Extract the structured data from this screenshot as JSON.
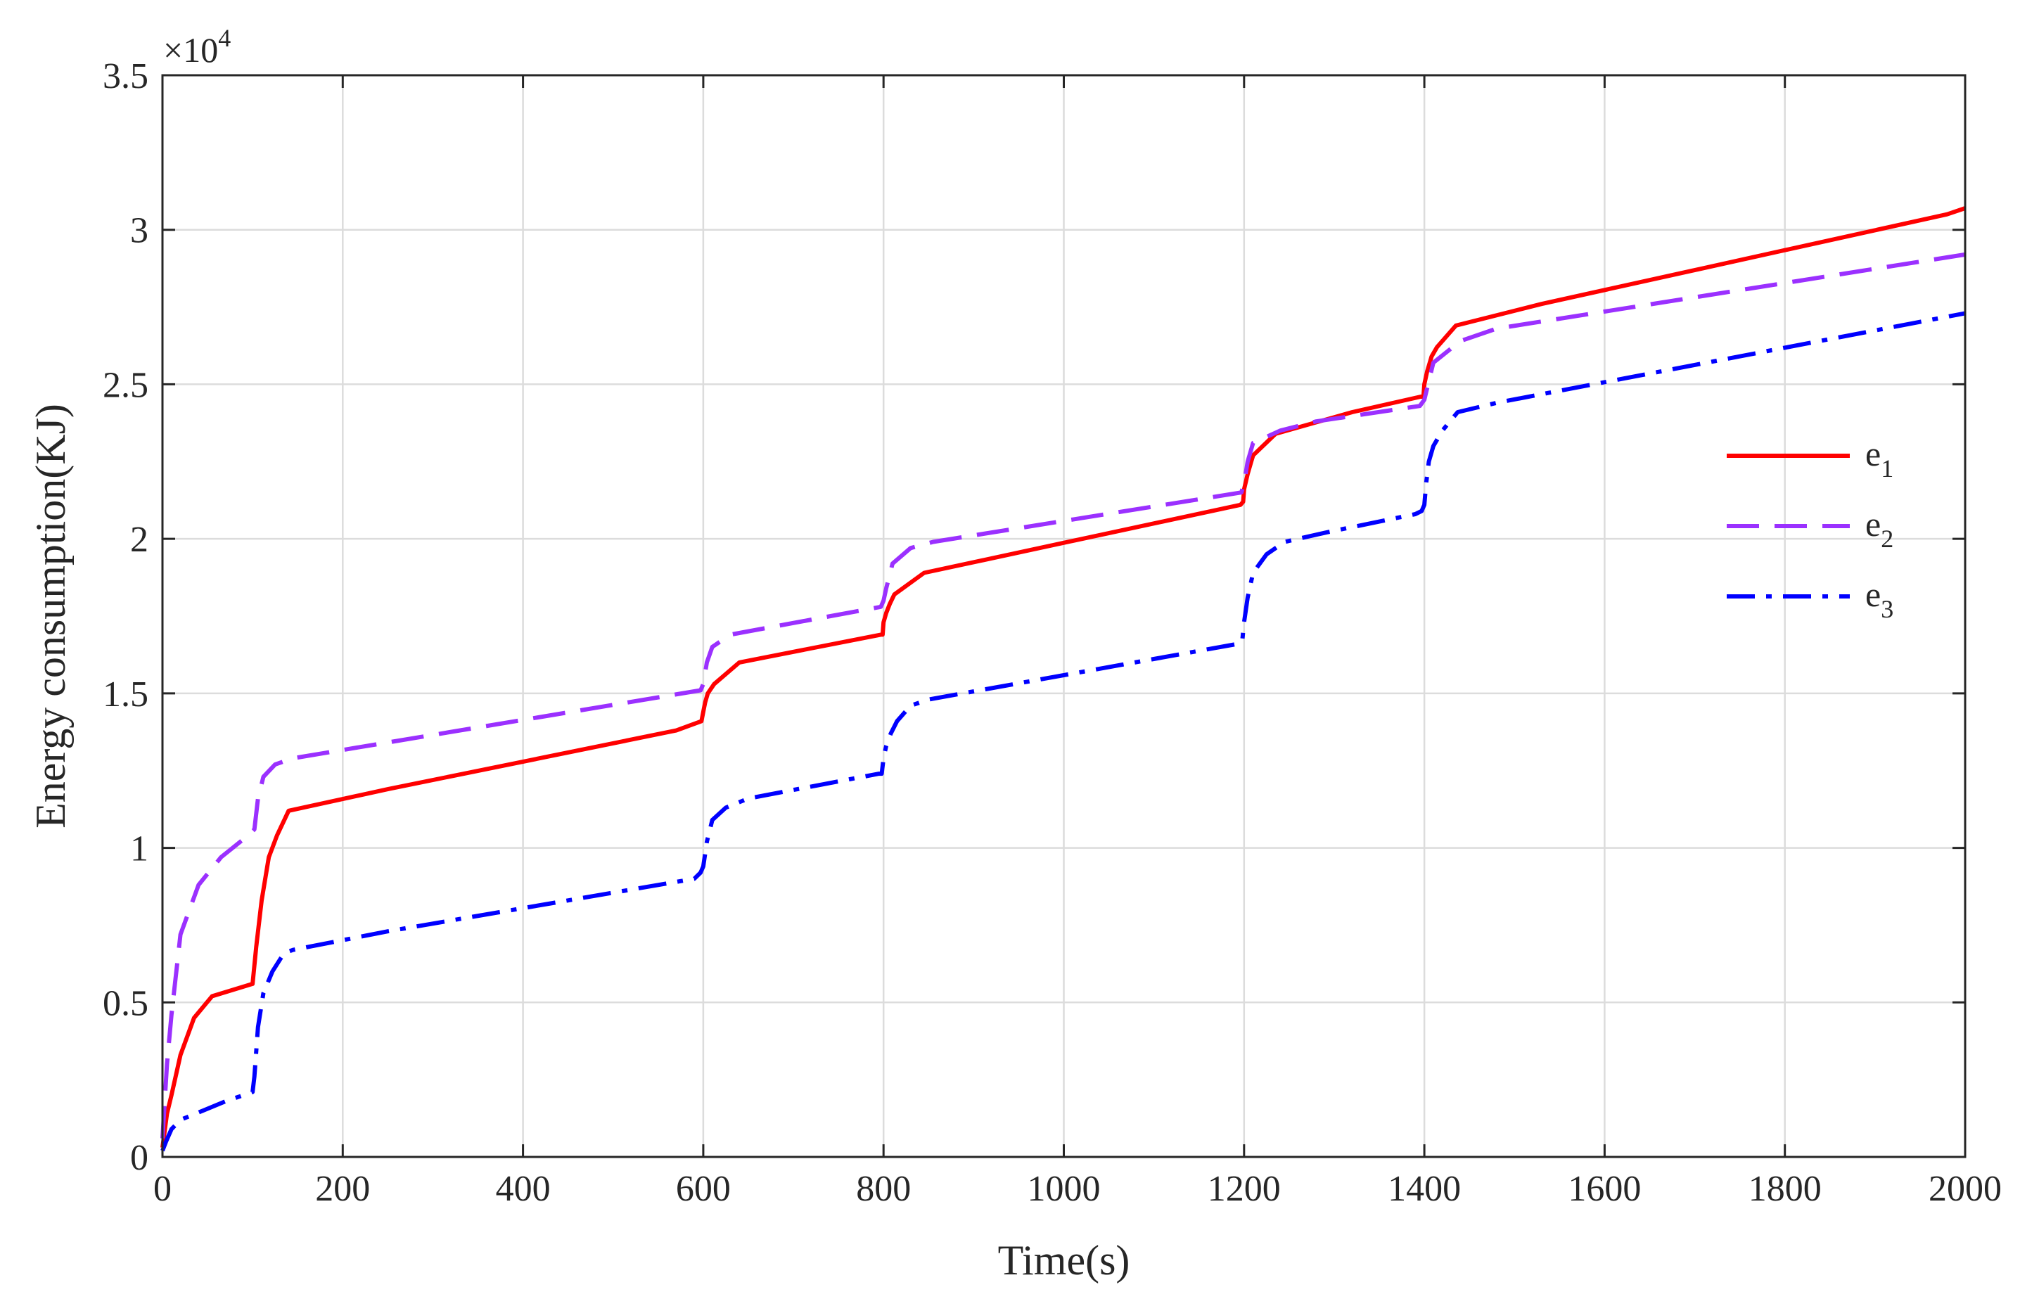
{
  "chart_data": {
    "type": "line",
    "title": "",
    "xlabel": "Time(s)",
    "ylabel": "Energy consumption(KJ)",
    "y_multiplier_label": "× 10^4",
    "y_exponent_base": "×10",
    "y_exponent_power": "4",
    "xlim": [
      0,
      2000
    ],
    "ylim": [
      0,
      35000
    ],
    "x_ticks": [
      0,
      200,
      400,
      600,
      800,
      1000,
      1200,
      1400,
      1600,
      1800,
      2000
    ],
    "x_tick_labels": [
      "0",
      "200",
      "400",
      "600",
      "800",
      "1000",
      "1200",
      "1400",
      "1600",
      "1800",
      "2000"
    ],
    "y_ticks": [
      0,
      5000,
      10000,
      15000,
      20000,
      25000,
      30000,
      35000
    ],
    "y_tick_labels": [
      "0",
      "0.5",
      "1",
      "1.5",
      "2",
      "2.5",
      "3",
      "3.5"
    ],
    "grid": true,
    "legend_position": "right",
    "colors": {
      "e1": "#ff0000",
      "e2": "#9b30ff",
      "e3": "#0000ff",
      "grid": "#dcdcdc",
      "axis": "#262626"
    },
    "series": [
      {
        "name": "e1",
        "legend_base": "e",
        "legend_sub": "1",
        "style": "solid",
        "points": [
          [
            0,
            300
          ],
          [
            5,
            1400
          ],
          [
            10,
            2000
          ],
          [
            20,
            3300
          ],
          [
            35,
            4500
          ],
          [
            55,
            5200
          ],
          [
            100,
            5600
          ],
          [
            104,
            6800
          ],
          [
            110,
            8300
          ],
          [
            118,
            9700
          ],
          [
            127,
            10400
          ],
          [
            140,
            11200
          ],
          [
            250,
            11900
          ],
          [
            570,
            13800
          ],
          [
            598,
            14100
          ],
          [
            600,
            14400
          ],
          [
            602,
            14700
          ],
          [
            605,
            15000
          ],
          [
            612,
            15300
          ],
          [
            640,
            16000
          ],
          [
            797,
            16900
          ],
          [
            799,
            16900
          ],
          [
            800,
            17300
          ],
          [
            803,
            17600
          ],
          [
            807,
            17900
          ],
          [
            812,
            18200
          ],
          [
            845,
            18900
          ],
          [
            1196,
            21100
          ],
          [
            1199,
            21200
          ],
          [
            1200,
            21600
          ],
          [
            1204,
            22100
          ],
          [
            1210,
            22700
          ],
          [
            1235,
            23400
          ],
          [
            1320,
            24100
          ],
          [
            1396,
            24600
          ],
          [
            1399,
            24600
          ],
          [
            1400,
            25000
          ],
          [
            1403,
            25400
          ],
          [
            1408,
            25900
          ],
          [
            1414,
            26200
          ],
          [
            1435,
            26900
          ],
          [
            1530,
            27600
          ],
          [
            1980,
            30500
          ],
          [
            2000,
            30700
          ]
        ]
      },
      {
        "name": "e2",
        "legend_base": "e",
        "legend_sub": "2",
        "style": "dashed",
        "points": [
          [
            0,
            600
          ],
          [
            5,
            3000
          ],
          [
            10,
            4600
          ],
          [
            20,
            7200
          ],
          [
            40,
            8800
          ],
          [
            65,
            9700
          ],
          [
            95,
            10400
          ],
          [
            102,
            10600
          ],
          [
            106,
            11600
          ],
          [
            112,
            12300
          ],
          [
            125,
            12700
          ],
          [
            145,
            12900
          ],
          [
            597,
            15100
          ],
          [
            600,
            15300
          ],
          [
            604,
            16000
          ],
          [
            610,
            16500
          ],
          [
            630,
            16900
          ],
          [
            797,
            17800
          ],
          [
            800,
            18000
          ],
          [
            803,
            18400
          ],
          [
            810,
            19200
          ],
          [
            830,
            19700
          ],
          [
            855,
            19900
          ],
          [
            1197,
            21500
          ],
          [
            1200,
            21800
          ],
          [
            1204,
            22500
          ],
          [
            1210,
            23100
          ],
          [
            1240,
            23500
          ],
          [
            1280,
            23800
          ],
          [
            1395,
            24300
          ],
          [
            1400,
            24500
          ],
          [
            1405,
            25100
          ],
          [
            1410,
            25700
          ],
          [
            1440,
            26400
          ],
          [
            1480,
            26800
          ],
          [
            2000,
            29200
          ]
        ]
      },
      {
        "name": "e3",
        "legend_base": "e",
        "legend_sub": "3",
        "style": "dashdot",
        "points": [
          [
            0,
            200
          ],
          [
            4,
            500
          ],
          [
            10,
            900
          ],
          [
            20,
            1200
          ],
          [
            45,
            1500
          ],
          [
            70,
            1800
          ],
          [
            100,
            2100
          ],
          [
            102,
            2600
          ],
          [
            106,
            4200
          ],
          [
            112,
            5300
          ],
          [
            122,
            6000
          ],
          [
            135,
            6600
          ],
          [
            145,
            6700
          ],
          [
            250,
            7300
          ],
          [
            590,
            9000
          ],
          [
            597,
            9200
          ],
          [
            600,
            9400
          ],
          [
            604,
            10200
          ],
          [
            610,
            10900
          ],
          [
            625,
            11300
          ],
          [
            650,
            11600
          ],
          [
            795,
            12400
          ],
          [
            798,
            12400
          ],
          [
            800,
            12900
          ],
          [
            803,
            13300
          ],
          [
            808,
            13700
          ],
          [
            815,
            14100
          ],
          [
            830,
            14600
          ],
          [
            850,
            14800
          ],
          [
            1193,
            16600
          ],
          [
            1198,
            16700
          ],
          [
            1200,
            17300
          ],
          [
            1204,
            18100
          ],
          [
            1210,
            18900
          ],
          [
            1225,
            19500
          ],
          [
            1245,
            19900
          ],
          [
            1290,
            20200
          ],
          [
            1390,
            20800
          ],
          [
            1397,
            20900
          ],
          [
            1400,
            21100
          ],
          [
            1402,
            21800
          ],
          [
            1405,
            22500
          ],
          [
            1410,
            23000
          ],
          [
            1420,
            23500
          ],
          [
            1437,
            24100
          ],
          [
            1480,
            24400
          ],
          [
            2000,
            27300
          ]
        ]
      }
    ]
  }
}
